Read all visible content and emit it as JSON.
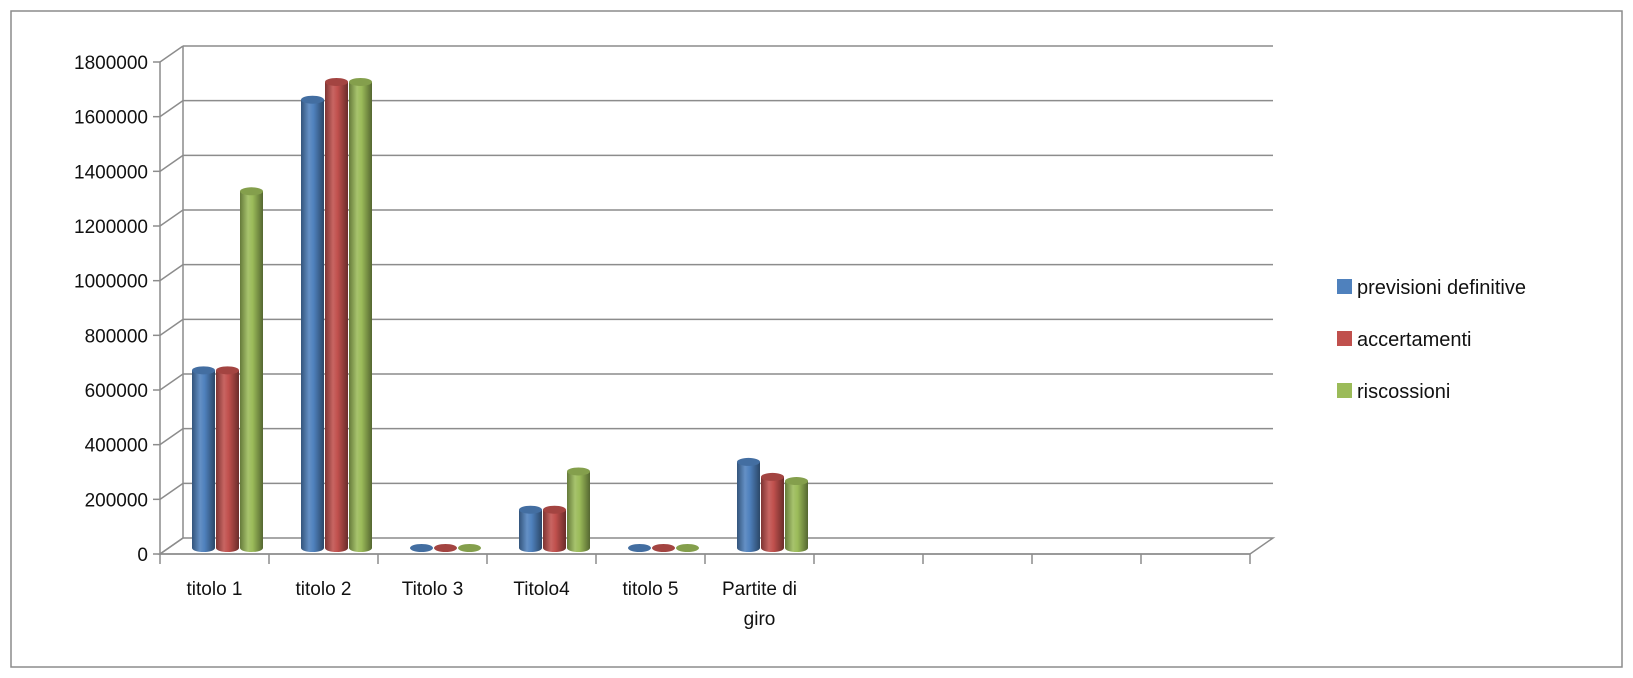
{
  "chart_data": {
    "type": "bar",
    "title": "",
    "xlabel": "",
    "ylabel": "",
    "ylim": [
      0,
      1800000
    ],
    "yticks": [
      "0",
      "200000",
      "400000",
      "600000",
      "800000",
      "1000000",
      "1200000",
      "1400000",
      "1600000",
      "1800000"
    ],
    "categories": [
      [
        "titolo 1"
      ],
      [
        "titolo 2"
      ],
      [
        "Titolo 3"
      ],
      [
        "Titolo4"
      ],
      [
        "titolo 5"
      ],
      [
        "Partite di",
        "giro"
      ],
      [
        ""
      ],
      [
        ""
      ],
      [
        ""
      ],
      [
        ""
      ]
    ],
    "series": [
      {
        "name": "previsioni definitive",
        "color": "#4F81BD",
        "values": [
          650000,
          1640000,
          0,
          140000,
          0,
          315000,
          null,
          null,
          null,
          null
        ]
      },
      {
        "name": "accertamenti",
        "color": "#C0504D",
        "values": [
          650000,
          1705000,
          0,
          140000,
          0,
          260000,
          null,
          null,
          null,
          null
        ]
      },
      {
        "name": "riscossioni",
        "color": "#9BBB59",
        "values": [
          1305000,
          1705000,
          0,
          280000,
          0,
          245000,
          null,
          null,
          null,
          null
        ]
      }
    ],
    "grid": true,
    "legend_position": "right"
  }
}
